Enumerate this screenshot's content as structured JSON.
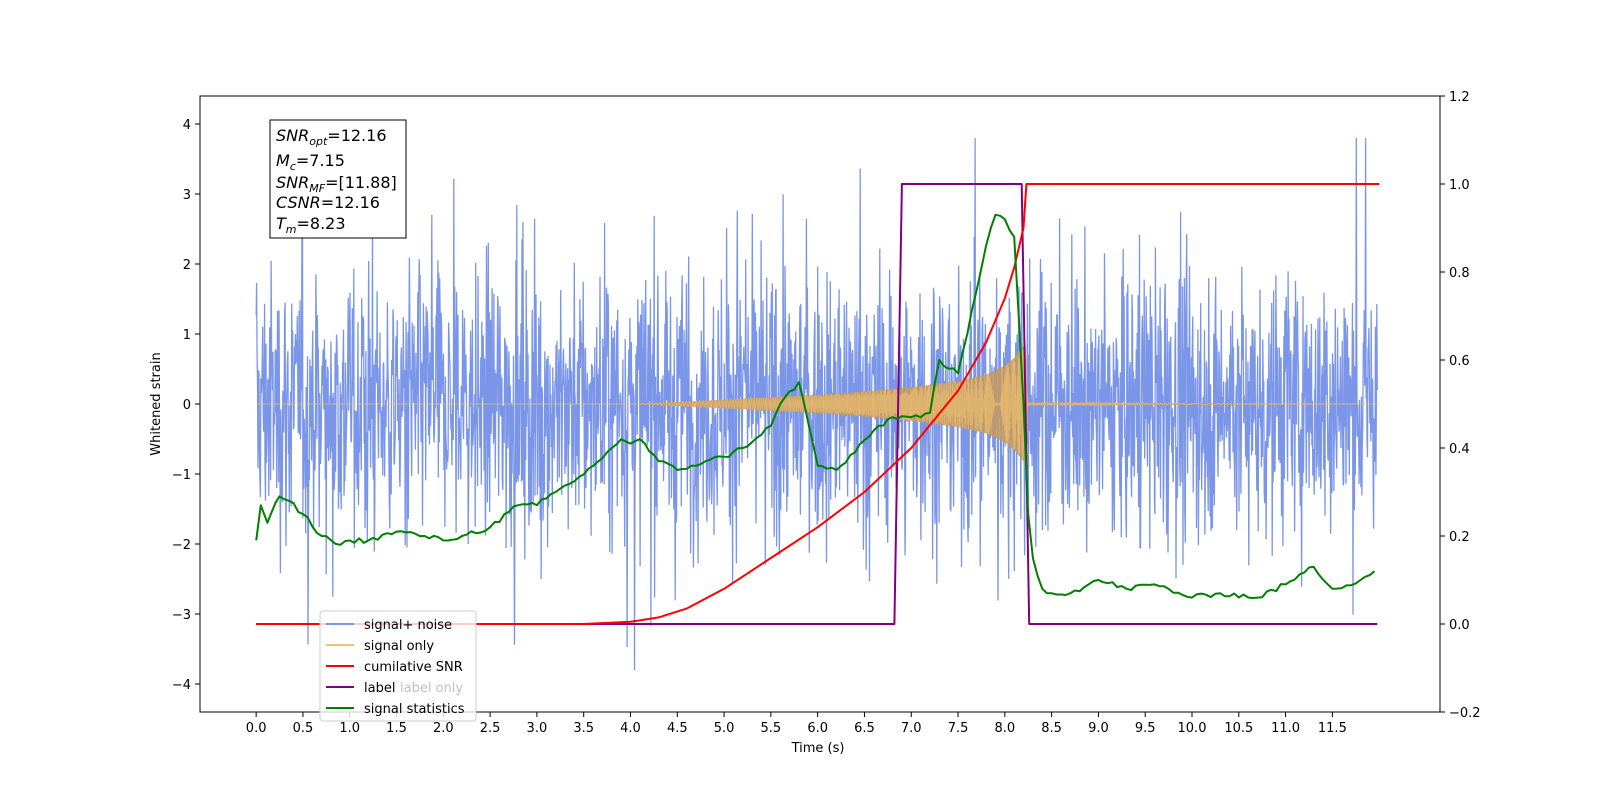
{
  "chart_data": {
    "type": "line",
    "xlabel": "Time (s)",
    "ylabel": "Whitened strain",
    "xlim": [
      -0.6,
      12.65
    ],
    "ylim": [
      -4.4,
      4.4
    ],
    "y2lim": [
      -0.2,
      1.2
    ],
    "grid": false,
    "legend_position": "lower-left",
    "x_ticks": [
      "0.0",
      "0.5",
      "1.0",
      "1.5",
      "2.0",
      "2.5",
      "3.0",
      "3.5",
      "4.0",
      "4.5",
      "5.0",
      "5.5",
      "6.0",
      "6.5",
      "7.0",
      "7.5",
      "8.0",
      "8.5",
      "9.0",
      "9.5",
      "10.0",
      "10.5",
      "11.0",
      "11.5"
    ],
    "y_ticks": [
      "4",
      "3",
      "2",
      "1",
      "0",
      "−1",
      "−2",
      "−3",
      "−4"
    ],
    "y2_ticks": [
      "1.2",
      "1.0",
      "0.8",
      "0.6",
      "0.4",
      "0.2",
      "0.0",
      "−0.2"
    ],
    "annotation": {
      "snr_opt": "=12.16",
      "mc": "=7.15",
      "snr_mf": "=[11.88]",
      "csnr": "=12.16",
      "tm": "=8.23"
    },
    "legend": [
      "signal+ noise",
      "signal only",
      "cumilative SNR",
      "label",
      "label only",
      "signal statistics"
    ],
    "colors": {
      "signal_noise": "#7b96e8",
      "signal_only": "#f5c26b",
      "cumulative_snr": "#ff0000",
      "label": "#800080",
      "signal_statistics": "#008000"
    },
    "series": [
      {
        "name": "signal+ noise",
        "axis": "left",
        "description_values": {
          "t_start": 0.0,
          "t_end": 11.98,
          "typical_amplitude": 1.7,
          "max": 3.8,
          "min": -3.8
        }
      },
      {
        "name": "signal only",
        "axis": "left",
        "envelope": {
          "t": [
            0,
            4.0,
            4.5,
            5.0,
            5.5,
            6.0,
            6.5,
            7.0,
            7.5,
            7.8,
            8.0,
            8.1,
            8.2,
            8.23,
            8.25,
            12.0
          ],
          "a": [
            0,
            0.0,
            0.03,
            0.06,
            0.1,
            0.13,
            0.18,
            0.24,
            0.33,
            0.42,
            0.55,
            0.66,
            0.82,
            0.9,
            0.02,
            0.0
          ]
        }
      },
      {
        "name": "cumilative SNR",
        "axis": "right",
        "x": [
          0,
          3.5,
          4.0,
          4.3,
          4.6,
          5.0,
          5.5,
          6.0,
          6.5,
          7.0,
          7.5,
          7.8,
          8.0,
          8.1,
          8.2,
          8.23,
          12.0
        ],
        "y": [
          0,
          0.0,
          0.005,
          0.015,
          0.035,
          0.08,
          0.15,
          0.22,
          0.3,
          0.4,
          0.53,
          0.64,
          0.74,
          0.81,
          0.9,
          1.0,
          1.0
        ]
      },
      {
        "name": "label",
        "axis": "right",
        "x": [
          0,
          6.82,
          6.9,
          8.18,
          8.26,
          11.98
        ],
        "y": [
          0,
          0,
          1,
          1,
          0,
          0
        ]
      },
      {
        "name": "signal statistics",
        "axis": "right",
        "x": [
          0,
          0.05,
          0.12,
          0.25,
          0.35,
          0.5,
          0.7,
          0.9,
          1.0,
          1.2,
          1.5,
          1.8,
          2.0,
          2.2,
          2.5,
          2.8,
          3.0,
          3.2,
          3.5,
          3.8,
          3.9,
          4.0,
          4.1,
          4.3,
          4.5,
          4.8,
          5.0,
          5.2,
          5.5,
          5.6,
          5.8,
          6.0,
          6.2,
          6.4,
          6.6,
          6.8,
          7.0,
          7.2,
          7.3,
          7.4,
          7.5,
          7.6,
          7.7,
          7.8,
          7.9,
          8.0,
          8.1,
          8.2,
          8.25,
          8.3,
          8.4,
          8.5,
          8.7,
          9.0,
          9.3,
          9.6,
          10.0,
          10.3,
          10.7,
          11.0,
          11.3,
          11.5,
          11.8,
          11.95
        ],
        "y": [
          0.19,
          0.27,
          0.23,
          0.29,
          0.28,
          0.25,
          0.2,
          0.18,
          0.19,
          0.19,
          0.21,
          0.2,
          0.19,
          0.2,
          0.22,
          0.27,
          0.27,
          0.3,
          0.34,
          0.4,
          0.42,
          0.41,
          0.42,
          0.37,
          0.35,
          0.37,
          0.38,
          0.4,
          0.45,
          0.5,
          0.55,
          0.36,
          0.35,
          0.39,
          0.44,
          0.47,
          0.47,
          0.48,
          0.6,
          0.58,
          0.57,
          0.66,
          0.76,
          0.86,
          0.93,
          0.92,
          0.88,
          0.5,
          0.25,
          0.15,
          0.08,
          0.07,
          0.07,
          0.1,
          0.08,
          0.09,
          0.06,
          0.07,
          0.06,
          0.09,
          0.13,
          0.08,
          0.1,
          0.12
        ]
      }
    ]
  }
}
